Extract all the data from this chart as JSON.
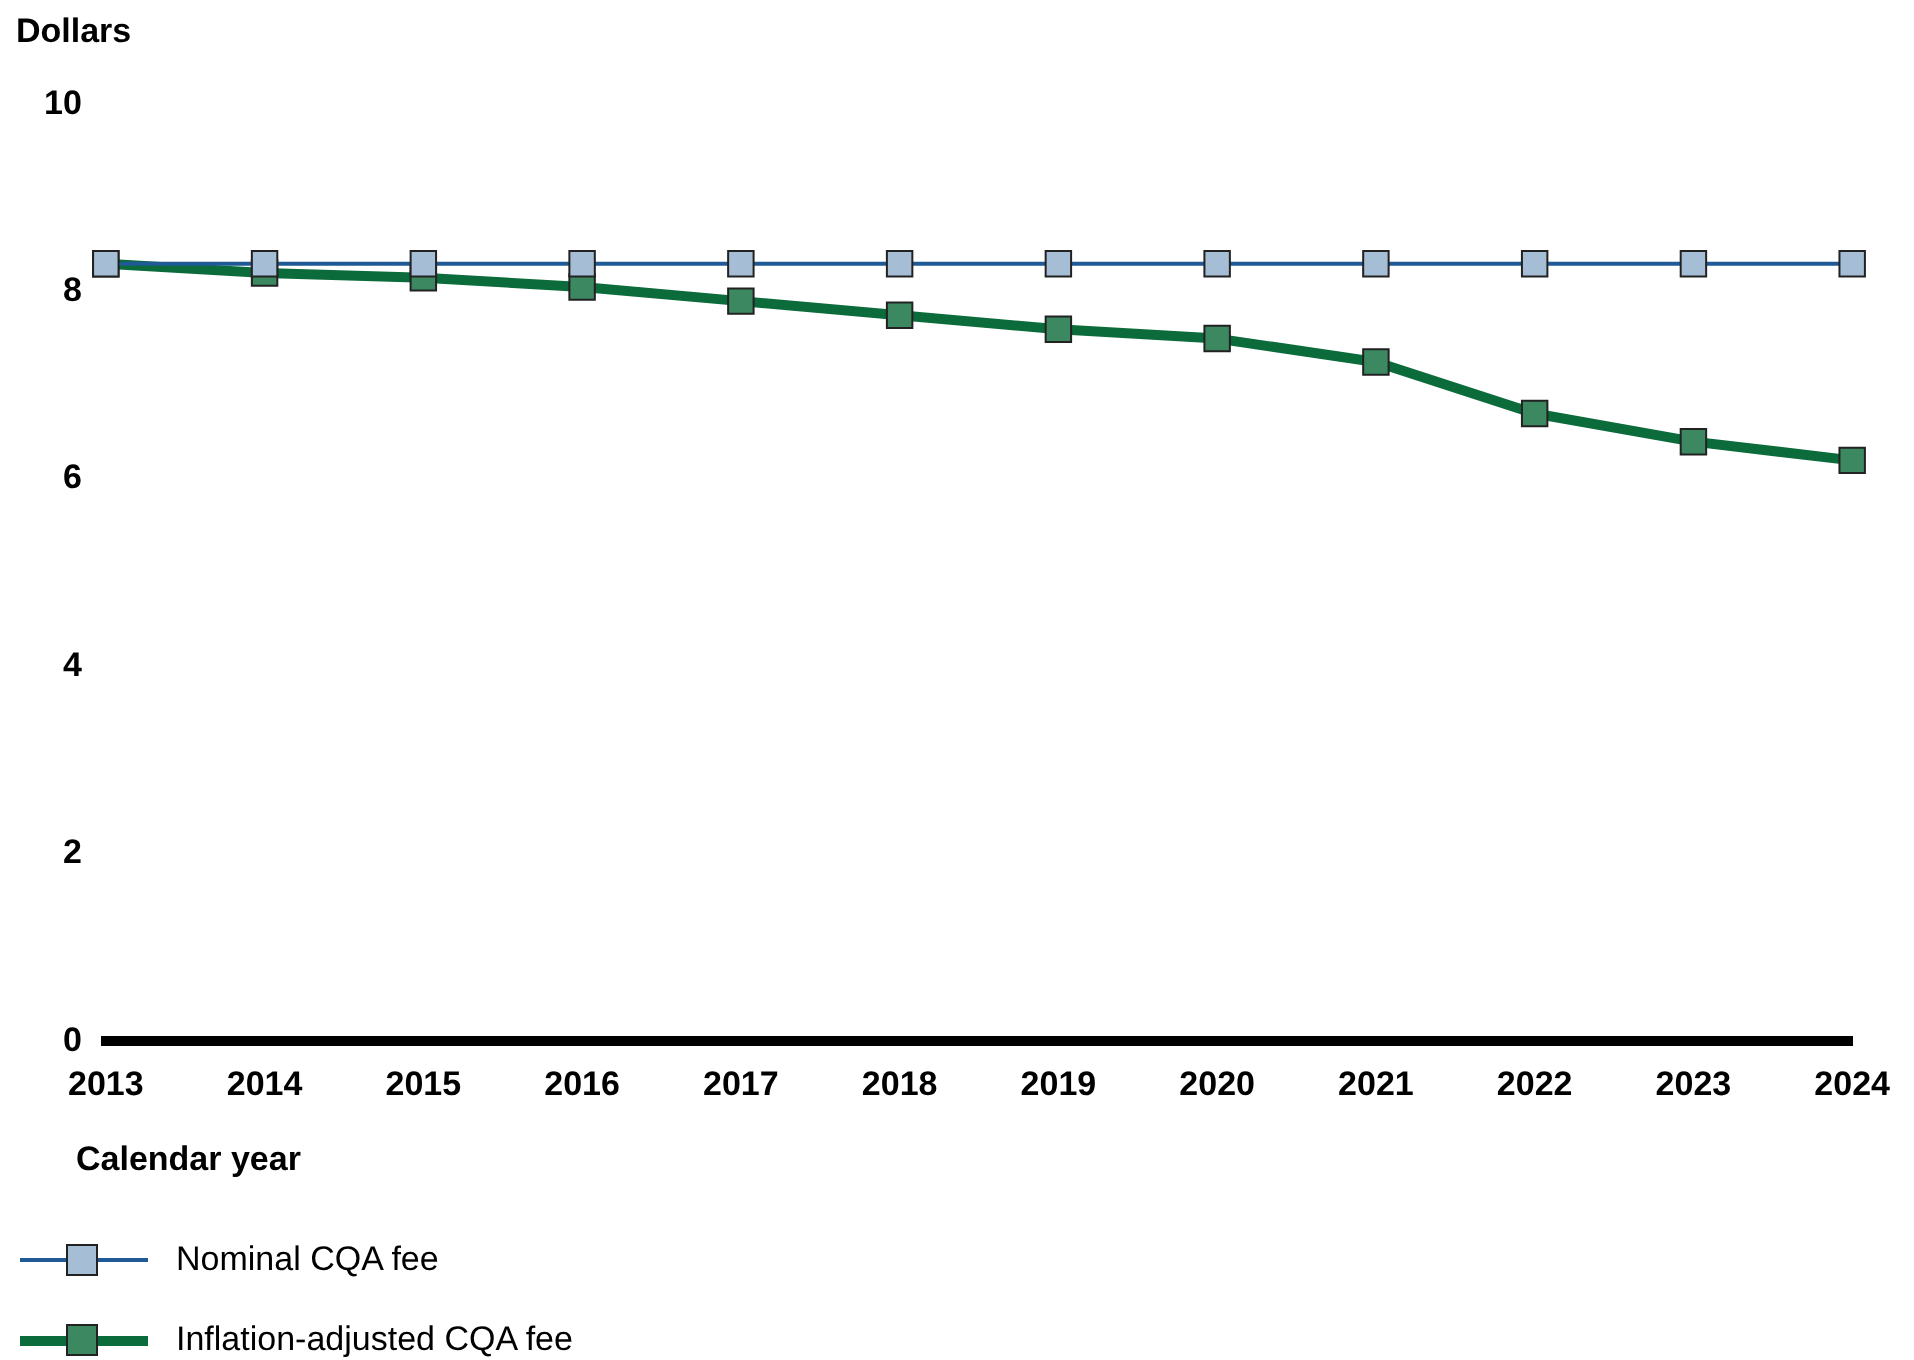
{
  "chart_data": {
    "type": "line",
    "xlabel": "Calendar year",
    "ylabel": "Dollars",
    "categories": [
      "2013",
      "2014",
      "2015",
      "2016",
      "2017",
      "2018",
      "2019",
      "2020",
      "2021",
      "2022",
      "2023",
      "2024"
    ],
    "series": [
      {
        "name": "Nominal CQA fee",
        "color": "#1f5a96",
        "values": [
          8.3,
          8.3,
          8.3,
          8.3,
          8.3,
          8.3,
          8.3,
          8.3,
          8.3,
          8.3,
          8.3,
          8.3
        ]
      },
      {
        "name": "Inflation-adjusted CQA fee",
        "color": "#0b6b3a",
        "values": [
          8.3,
          8.2,
          8.15,
          8.05,
          7.9,
          7.75,
          7.6,
          7.5,
          7.25,
          6.7,
          6.4,
          6.2
        ]
      }
    ],
    "ylim": [
      0,
      10
    ],
    "yticks": [
      0,
      2,
      4,
      6,
      8,
      10
    ],
    "grid": false,
    "legend": "bottom left",
    "marker": "square",
    "line_style": "solid"
  }
}
